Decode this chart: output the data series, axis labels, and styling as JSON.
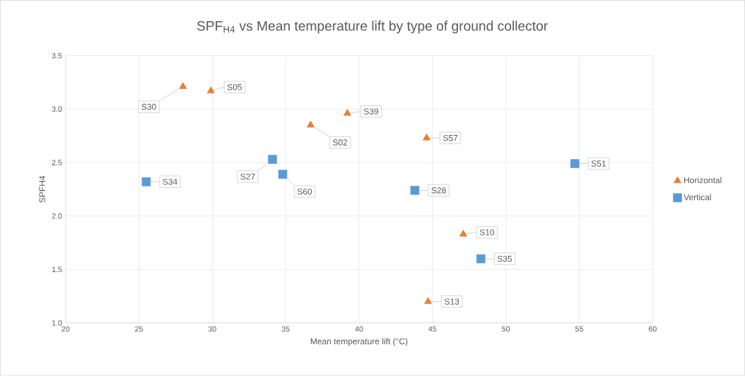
{
  "chart_data": {
    "type": "scatter",
    "title": "SPF$_{H4}$ vs Mean temperature lift by type of ground collector",
    "xlabel": "Mean temperature  lift (°C)",
    "ylabel": "SPFH4",
    "xlim": [
      20,
      60
    ],
    "xticks": [
      20,
      25,
      30,
      35,
      40,
      45,
      50,
      55,
      60
    ],
    "ylim": [
      1.0,
      3.5
    ],
    "yticks": [
      {
        "value": 1.0,
        "label": "1.0"
      },
      {
        "value": 1.5,
        "label": "1.5"
      },
      {
        "value": 2.0,
        "label": "2.0"
      },
      {
        "value": 2.5,
        "label": "2.5"
      },
      {
        "value": 3.0,
        "label": "3.0"
      },
      {
        "value": 3.5,
        "label": "3.5"
      }
    ],
    "grid": true,
    "legend": "right",
    "series": [
      {
        "name": "Horizontal",
        "color": "#ed7d31",
        "marker": "triangle",
        "x": [
          28.0,
          29.9,
          36.7,
          39.2,
          44.6,
          47.1,
          44.7
        ],
        "values": [
          3.21,
          3.17,
          2.85,
          2.96,
          2.73,
          1.83,
          1.2
        ]
      },
      {
        "name": "Vertical",
        "color": "#5b9bd5",
        "marker": "square",
        "x": [
          25.5,
          34.1,
          34.8,
          43.8,
          48.3,
          54.7
        ],
        "values": [
          2.32,
          2.53,
          2.39,
          2.24,
          1.6,
          2.49
        ]
      }
    ],
    "annotations": [
      {
        "text": "S30",
        "x": 28.0,
        "y": 3.21
      },
      {
        "text": "S05",
        "x": 29.9,
        "y": 3.17
      },
      {
        "text": "S02",
        "x": 36.7,
        "y": 2.85
      },
      {
        "text": "S39",
        "x": 39.2,
        "y": 2.96
      },
      {
        "text": "S57",
        "x": 44.6,
        "y": 2.73
      },
      {
        "text": "S10",
        "x": 47.1,
        "y": 1.83
      },
      {
        "text": "S13",
        "x": 44.7,
        "y": 1.2
      },
      {
        "text": "S34",
        "x": 25.5,
        "y": 2.32
      },
      {
        "text": "S27",
        "x": 34.1,
        "y": 2.53
      },
      {
        "text": "S60",
        "x": 34.8,
        "y": 2.39
      },
      {
        "text": "S28",
        "x": 43.8,
        "y": 2.24
      },
      {
        "text": "S35",
        "x": 48.3,
        "y": 1.6
      },
      {
        "text": "S51",
        "x": 54.7,
        "y": 2.49
      }
    ]
  }
}
